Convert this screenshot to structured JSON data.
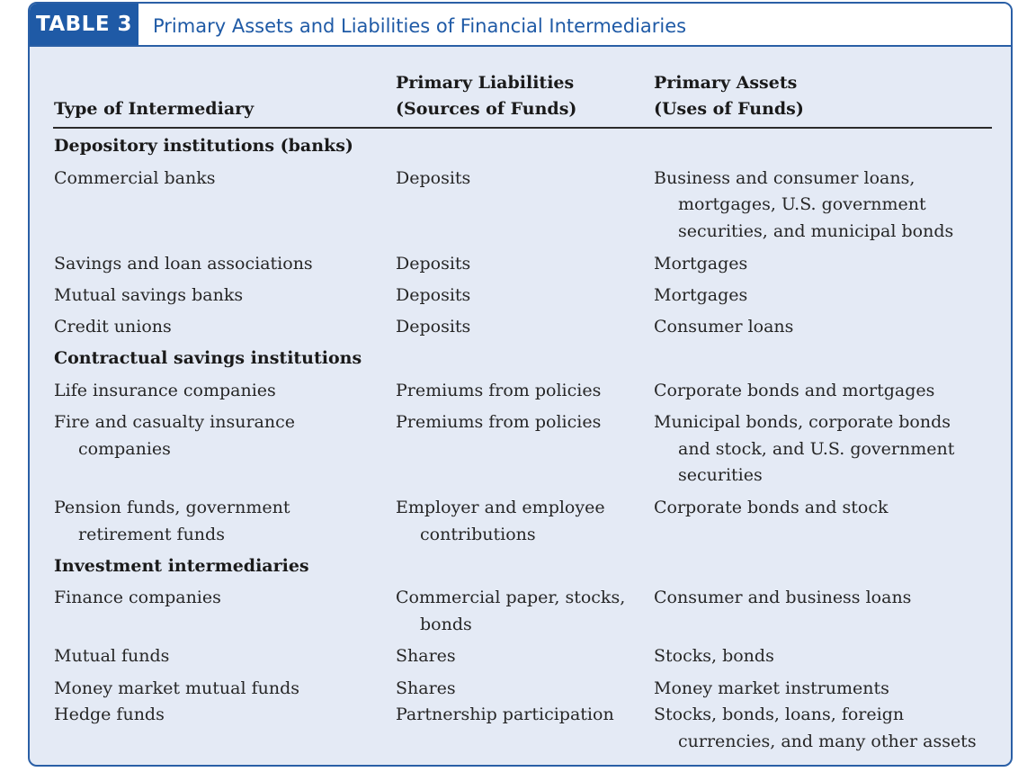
{
  "table": {
    "label": "TABLE 3",
    "title": "Primary Assets and Liabilities of Financial Intermediaries",
    "headers": {
      "col1": "Type of Intermediary",
      "col2_line1": "Primary Liabilities",
      "col2_line2": "(Sources of Funds)",
      "col3_line1": "Primary Assets",
      "col3_line2": "(Uses of Funds)"
    },
    "sections": [
      {
        "title": "Depository institutions (banks)",
        "rows": [
          {
            "type": [
              "Commercial banks"
            ],
            "liabilities": [
              "Deposits"
            ],
            "assets": [
              "Business and consumer loans,",
              "mortgages, U.S. government",
              "securities, and municipal bonds"
            ]
          },
          {
            "type": [
              "Savings and loan associations"
            ],
            "liabilities": [
              "Deposits"
            ],
            "assets": [
              "Mortgages"
            ]
          },
          {
            "type": [
              "Mutual savings banks"
            ],
            "liabilities": [
              "Deposits"
            ],
            "assets": [
              "Mortgages"
            ]
          },
          {
            "type": [
              "Credit unions"
            ],
            "liabilities": [
              "Deposits"
            ],
            "assets": [
              "Consumer loans"
            ]
          }
        ]
      },
      {
        "title": "Contractual savings institutions",
        "rows": [
          {
            "type": [
              "Life insurance companies"
            ],
            "liabilities": [
              "Premiums from policies"
            ],
            "assets": [
              "Corporate bonds and mortgages"
            ]
          },
          {
            "type": [
              "Fire and casualty insurance",
              "companies"
            ],
            "liabilities": [
              "Premiums from policies"
            ],
            "assets": [
              "Municipal bonds, corporate bonds",
              "and stock, and U.S. government",
              "securities"
            ]
          },
          {
            "type": [
              "Pension funds, government",
              "retirement funds"
            ],
            "liabilities": [
              "Employer and employee",
              "contributions"
            ],
            "assets": [
              "Corporate bonds and stock"
            ]
          }
        ]
      },
      {
        "title": "Investment intermediaries",
        "rows": [
          {
            "type": [
              "Finance companies"
            ],
            "liabilities": [
              "Commercial paper, stocks,",
              "bonds"
            ],
            "assets": [
              "Consumer and business loans"
            ]
          },
          {
            "type": [
              "Mutual funds"
            ],
            "liabilities": [
              "Shares"
            ],
            "assets": [
              "Stocks, bonds"
            ]
          },
          {
            "type": [
              "Money market mutual funds"
            ],
            "liabilities": [
              "Shares"
            ],
            "assets": [
              "Money market instruments"
            ]
          },
          {
            "type": [
              "Hedge funds"
            ],
            "liabilities": [
              "Partnership participation"
            ],
            "assets": [
              "Stocks, bonds, loans, foreign",
              "currencies, and many other assets"
            ]
          }
        ]
      }
    ]
  }
}
